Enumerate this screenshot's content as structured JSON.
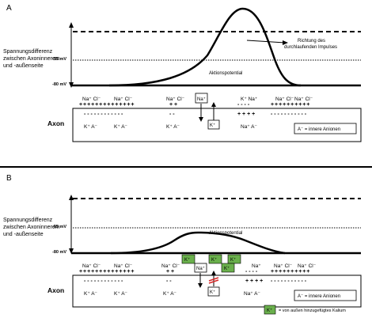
{
  "colors": {
    "potassium_box": "#6ab04c",
    "line": "#000000",
    "background": "#ffffff"
  },
  "panel_a": {
    "label": "A",
    "ylabel": [
      "Spannungsdifferenz",
      "zwischen Axoninnerem",
      "und -außenseite"
    ],
    "level_minus55": "-55 mV",
    "level_minus80": "-80 mV",
    "direction_text": [
      "Richtung des",
      "durchlaufenden Impulses"
    ],
    "peak_label": "Aktionspotential",
    "axon_label": "Axon",
    "legend": "A⁻ = innere Anionen",
    "outside_ions": [
      {
        "na": "Na⁺",
        "cl": "Cl⁻"
      },
      {
        "na": "Na⁺",
        "cl": "Cl⁻"
      },
      {
        "na": "Na⁺",
        "cl": "Cl⁻"
      },
      {
        "na": "Na⁺",
        "cl": "Cl⁻"
      },
      {
        "na": "Na⁺",
        "cl": "Cl⁻"
      }
    ],
    "k_outside": "K⁺",
    "na_box": "Na⁺",
    "k_box": "K⁺",
    "inside_ions": [
      "K⁺ A⁻",
      "K⁺ A⁻",
      "K⁺ A⁻",
      "Na⁺ A⁻"
    ],
    "plus_signs": "+ + + + + + + + + + + +",
    "minus_signs": "- - - - - - - - - - -"
  },
  "panel_b": {
    "label": "B",
    "ylabel": [
      "Spannungsdifferenz",
      "zwischen Axoninnerem",
      "und -außenseite"
    ],
    "level_minus55": "-55 mV",
    "level_minus80": "-80 mV",
    "peak_label": "Aktionspotential",
    "axon_label": "Axon",
    "legend": "A⁻ = innere Anionen",
    "k_legend": "= von außen hinzugefügtes Kalium",
    "k_label": "K⁺",
    "na_box": "Na⁺",
    "k_box": "K⁺",
    "na_outside": "Na⁺",
    "outside_ions": [
      {
        "na": "Na⁺",
        "cl": "Cl⁻"
      },
      {
        "na": "Na⁺",
        "cl": "Cl⁻"
      },
      {
        "na": "Na⁺",
        "cl": "Cl⁻"
      },
      {
        "na": "Na⁺",
        "cl": "Cl⁻"
      },
      {
        "na": "Na⁺",
        "cl": "Cl⁻"
      }
    ],
    "inside_ions": [
      "K⁺ A⁻",
      "K⁺ A⁻",
      "K⁺ A⁻",
      "Na⁺ A⁻"
    ]
  }
}
